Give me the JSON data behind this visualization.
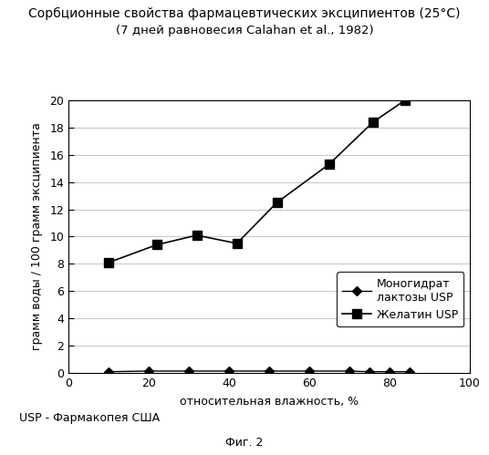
{
  "title": "Сорбционные свойства фармацевтических эксципиентов (25°С)",
  "subtitle": "(7 дней равновесия Calahan et al., 1982)",
  "xlabel": "относительная влажность, %",
  "ylabel": "грамм воды / 100 грамм эксципиента",
  "footnote": "USP - Фармакопея США",
  "figure_label": "Фиг. 2",
  "xlim": [
    0,
    100
  ],
  "ylim": [
    0,
    20
  ],
  "xticks": [
    0,
    20,
    40,
    60,
    80,
    100
  ],
  "yticks": [
    0,
    2,
    4,
    6,
    8,
    10,
    12,
    14,
    16,
    18,
    20
  ],
  "lactose_x": [
    10,
    20,
    30,
    40,
    50,
    60,
    70,
    75,
    80,
    85
  ],
  "lactose_y": [
    0.1,
    0.15,
    0.15,
    0.15,
    0.15,
    0.15,
    0.15,
    0.1,
    0.1,
    0.1
  ],
  "gelatin_x": [
    10,
    22,
    32,
    42,
    52,
    65,
    76,
    84
  ],
  "gelatin_y": [
    8.1,
    9.4,
    10.1,
    9.5,
    12.5,
    15.3,
    18.4,
    20.0
  ],
  "lactose_label": "Моногидрат\nлактозы USP",
  "gelatin_label": "Желатин USP",
  "line_color": "#000000",
  "background_color": "#ffffff",
  "title_fontsize": 10,
  "subtitle_fontsize": 9.5,
  "axis_fontsize": 9,
  "tick_fontsize": 9,
  "legend_fontsize": 9
}
